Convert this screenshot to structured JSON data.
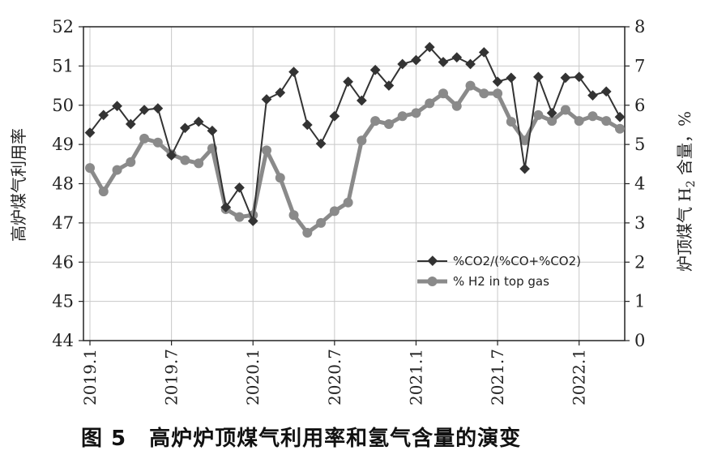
{
  "caption": {
    "figure_number": "图 5",
    "text": "高炉炉顶煤气利用率和氢气含量的演变"
  },
  "chart_data": {
    "type": "line",
    "y_left_label": "高炉煤气利用率",
    "y_right_label_prefix": "炉顶煤气 H",
    "y_right_label_sub": "2",
    "y_right_label_suffix": " 含量，%",
    "y_left_lim": [
      44,
      52
    ],
    "y_right_lim": [
      0,
      8
    ],
    "y_left_ticks": [
      "44",
      "45",
      "46",
      "47",
      "48",
      "49",
      "50",
      "51",
      "52"
    ],
    "y_right_ticks": [
      "0",
      "1",
      "2",
      "3",
      "4",
      "5",
      "6",
      "7",
      "8"
    ],
    "x_ticks": [
      "2019.1",
      "2019.7",
      "2020.1",
      "2020.7",
      "2021.1",
      "2021.7",
      "2022.1"
    ],
    "x_tick_index": [
      0,
      6,
      12,
      18,
      24,
      30,
      36
    ],
    "grid": true,
    "legend_position": "center-right",
    "series": [
      {
        "name": "%CO2/(%CO+%CO2)",
        "axis": "left",
        "color": "#333333",
        "marker": "diamond",
        "values": [
          49.3,
          49.75,
          49.98,
          49.52,
          49.88,
          49.92,
          48.72,
          49.42,
          49.58,
          49.35,
          47.4,
          47.9,
          47.05,
          50.15,
          50.32,
          50.85,
          49.5,
          49.02,
          49.72,
          50.6,
          50.12,
          50.9,
          50.5,
          51.05,
          51.15,
          51.48,
          51.1,
          51.22,
          51.05,
          51.35,
          50.6,
          50.7,
          48.38,
          50.72,
          49.8,
          50.7,
          50.72,
          50.25,
          50.35,
          49.7
        ]
      },
      {
        "name": "% H2 in top gas",
        "axis": "right",
        "color": "#8a8a8a",
        "marker": "circle",
        "values": [
          4.4,
          3.8,
          4.35,
          4.55,
          5.15,
          5.05,
          4.75,
          4.6,
          4.52,
          4.9,
          3.35,
          3.15,
          3.2,
          4.85,
          4.15,
          3.2,
          2.75,
          3.0,
          3.3,
          3.52,
          5.1,
          5.6,
          5.52,
          5.72,
          5.8,
          6.05,
          6.3,
          5.98,
          6.5,
          6.3,
          6.3,
          5.58,
          5.1,
          5.75,
          5.6,
          5.88,
          5.6,
          5.72,
          5.6,
          5.4
        ]
      }
    ]
  }
}
